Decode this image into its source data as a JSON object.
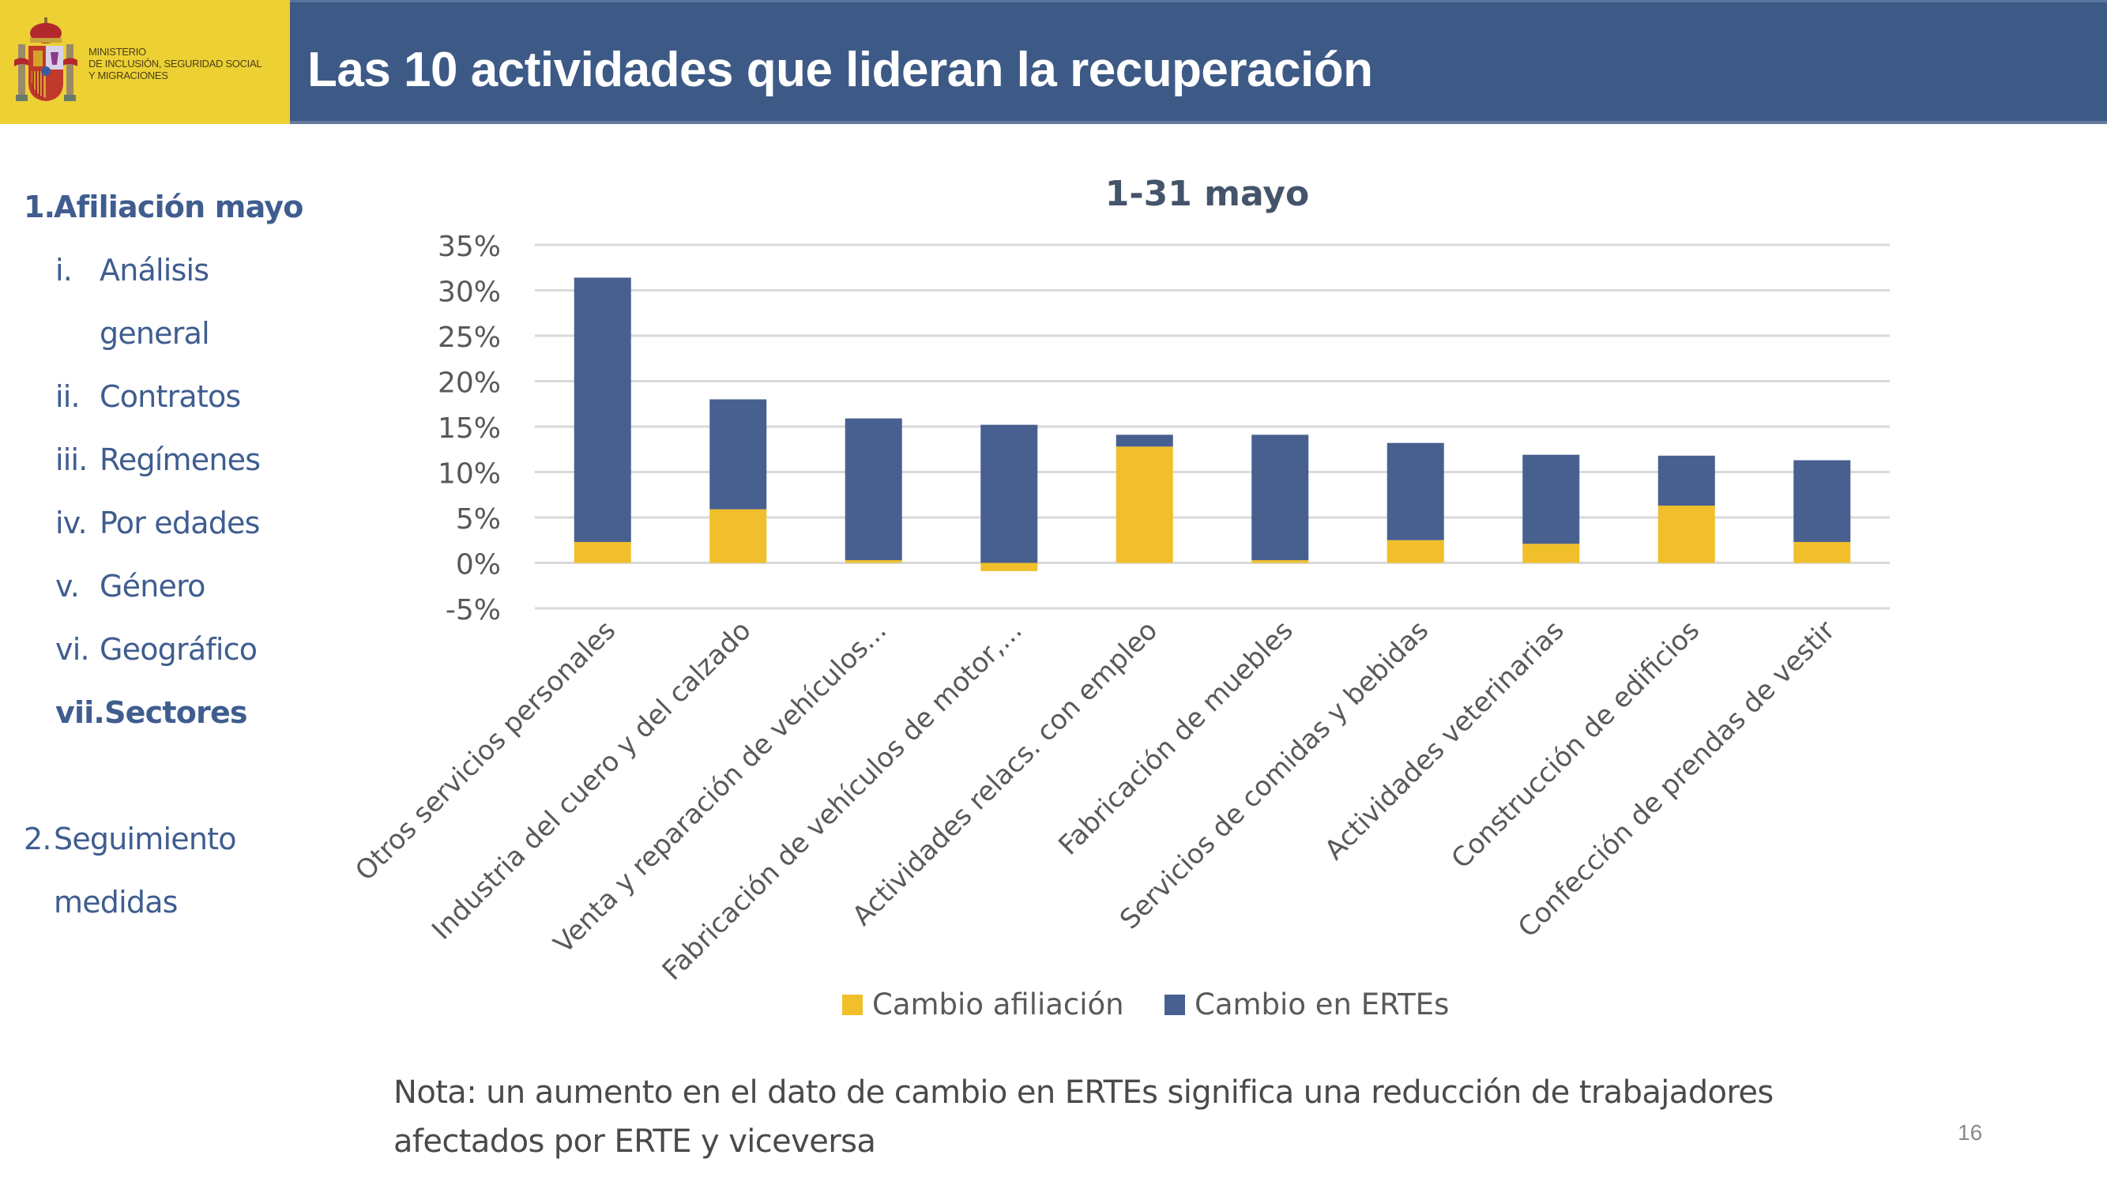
{
  "header": {
    "ministry_lines": [
      "MINISTERIO",
      "DE INCLUSIÓN, SEGURIDAD SOCIAL",
      "Y MIGRACIONES"
    ],
    "title": "Las 10 actividades que lideran la recuperación",
    "emblem_icon": "spain-coat-of-arms-icon"
  },
  "nav": {
    "items": [
      {
        "num": "1.",
        "label": "Afiliación mayo",
        "bold": true
      },
      {
        "num": "i.",
        "label": "Análisis",
        "bold": false
      },
      {
        "num": "",
        "label": "general",
        "bold": false
      },
      {
        "num": "ii.",
        "label": "Contratos",
        "bold": false
      },
      {
        "num": "iii.",
        "label": "Regímenes",
        "bold": false
      },
      {
        "num": "iv.",
        "label": "Por edades",
        "bold": false
      },
      {
        "num": "v.",
        "label": "Género",
        "bold": false
      },
      {
        "num": "vi.",
        "label": "Geográfico",
        "bold": false
      },
      {
        "num": "vii.",
        "label": "Sectores",
        "bold": true
      },
      {
        "num": "2.",
        "label": "Seguimiento",
        "bold": false
      },
      {
        "num": "",
        "label": "medidas",
        "bold": false
      }
    ]
  },
  "colors": {
    "header_blue": "#3d5a87",
    "logo_yellow": "#ecd034",
    "nav_text": "#3f5d8f",
    "series_afiliacion": "#f0bf2b",
    "series_ertes": "#47608f",
    "gridline": "#d9d9d9"
  },
  "chart_data": {
    "type": "bar",
    "stacked": true,
    "title": "1-31 mayo",
    "xlabel": "",
    "ylabel": "",
    "ylim": [
      -5,
      35
    ],
    "yticks": [
      -5,
      0,
      5,
      10,
      15,
      20,
      25,
      30,
      35
    ],
    "ytick_labels": [
      "-5%",
      "0%",
      "5%",
      "10%",
      "15%",
      "20%",
      "25%",
      "30%",
      "35%"
    ],
    "grid": true,
    "legend_position": "bottom",
    "categories": [
      "Otros servicios personales",
      "Industria del cuero y del calzado",
      "Venta y reparación de vehículos...",
      "Fabricación de vehículos de motor,...",
      "Actividades relacs. con empleo",
      "Fabricación de muebles",
      "Servicios de comidas y bebidas",
      "Actividades veterinarias",
      "Construcción de edificios",
      "Confección de prendas de vestir"
    ],
    "series": [
      {
        "name": "Cambio afiliación",
        "color": "#f0bf2b",
        "values": [
          2.3,
          5.9,
          0.3,
          -0.9,
          12.8,
          0.3,
          2.5,
          2.1,
          6.3,
          2.3
        ]
      },
      {
        "name": "Cambio en ERTEs",
        "color": "#47608f",
        "values": [
          29.1,
          12.1,
          15.6,
          15.2,
          1.3,
          13.8,
          10.7,
          9.8,
          5.5,
          9.0
        ]
      }
    ],
    "unit": "%"
  },
  "note": {
    "line1": "Nota: un aumento en el dato de cambio en ERTEs significa una reducción de trabajadores",
    "line2": "afectados por ERTE y viceversa"
  },
  "page_number": "16"
}
